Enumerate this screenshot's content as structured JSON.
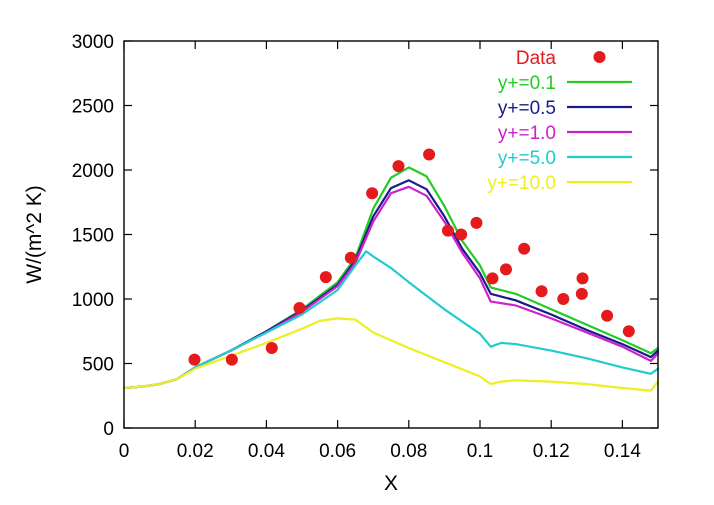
{
  "chart_data": {
    "type": "line",
    "title": "",
    "xlabel": "X",
    "ylabel": "W/(m^2 K)",
    "xlim": [
      0,
      0.15
    ],
    "ylim": [
      0,
      3000
    ],
    "xticks": [
      0,
      0.02,
      0.04,
      0.06,
      0.08,
      0.1,
      0.12,
      0.14
    ],
    "xtick_labels": [
      "0",
      "0.02",
      "0.04",
      "0.06",
      "0.08",
      "0.1",
      "0.12",
      "0.14"
    ],
    "yticks": [
      0,
      500,
      1000,
      1500,
      2000,
      2500,
      3000
    ],
    "ytick_labels": [
      "0",
      "500",
      "1000",
      "1500",
      "2000",
      "2500",
      "3000"
    ],
    "grid": false,
    "legend_position": "top-right",
    "data_points": {
      "name": "Data",
      "color": "#e41a1c",
      "x": [
        0.0198,
        0.0303,
        0.0415,
        0.0493,
        0.0567,
        0.0637,
        0.0697,
        0.0771,
        0.0857,
        0.091,
        0.0947,
        0.099,
        0.1035,
        0.1073,
        0.1124,
        0.1173,
        0.1234,
        0.1286,
        0.1288,
        0.1357,
        0.1418
      ],
      "y": [
        530,
        530,
        620,
        930,
        1170,
        1320,
        1820,
        2030,
        2120,
        1530,
        1500,
        1590,
        1160,
        1230,
        1390,
        1060,
        1000,
        1040,
        1160,
        870,
        750
      ]
    },
    "series": [
      {
        "name": "y+=0.1",
        "color": "#22cc22",
        "x": [
          0,
          0.005,
          0.01,
          0.015,
          0.02,
          0.03,
          0.04,
          0.05,
          0.06,
          0.065,
          0.07,
          0.075,
          0.08,
          0.085,
          0.09,
          0.095,
          0.1,
          0.103,
          0.11,
          0.12,
          0.13,
          0.14,
          0.148,
          0.15
        ],
        "y": [
          310,
          320,
          340,
          380,
          470,
          600,
          750,
          920,
          1130,
          1320,
          1700,
          1940,
          2020,
          1950,
          1720,
          1450,
          1260,
          1090,
          1040,
          920,
          800,
          680,
          580,
          620
        ]
      },
      {
        "name": "y+=0.5",
        "color": "#1a1a8c",
        "x": [
          0,
          0.005,
          0.01,
          0.015,
          0.02,
          0.03,
          0.04,
          0.05,
          0.06,
          0.065,
          0.07,
          0.075,
          0.08,
          0.085,
          0.09,
          0.095,
          0.1,
          0.103,
          0.11,
          0.12,
          0.13,
          0.14,
          0.148,
          0.15
        ],
        "y": [
          310,
          320,
          340,
          380,
          470,
          600,
          750,
          910,
          1110,
          1300,
          1640,
          1860,
          1920,
          1850,
          1640,
          1390,
          1200,
          1040,
          990,
          880,
          760,
          650,
          550,
          600
        ]
      },
      {
        "name": "y+=1.0",
        "color": "#cc22cc",
        "x": [
          0,
          0.005,
          0.01,
          0.015,
          0.02,
          0.03,
          0.04,
          0.05,
          0.06,
          0.065,
          0.07,
          0.075,
          0.08,
          0.085,
          0.09,
          0.095,
          0.1,
          0.103,
          0.11,
          0.12,
          0.13,
          0.14,
          0.148,
          0.15
        ],
        "y": [
          310,
          320,
          340,
          380,
          470,
          600,
          740,
          900,
          1100,
          1280,
          1600,
          1820,
          1870,
          1800,
          1600,
          1360,
          1160,
          980,
          950,
          850,
          740,
          630,
          520,
          580
        ]
      },
      {
        "name": "y+=5.0",
        "color": "#22cccc",
        "x": [
          0,
          0.005,
          0.01,
          0.015,
          0.02,
          0.03,
          0.04,
          0.05,
          0.06,
          0.065,
          0.068,
          0.07,
          0.075,
          0.08,
          0.09,
          0.1,
          0.103,
          0.106,
          0.11,
          0.12,
          0.13,
          0.14,
          0.148,
          0.15
        ],
        "y": [
          310,
          320,
          340,
          380,
          470,
          600,
          740,
          880,
          1070,
          1260,
          1370,
          1330,
          1240,
          1130,
          920,
          730,
          630,
          660,
          650,
          600,
          540,
          470,
          420,
          460
        ]
      },
      {
        "name": "y+=10.0",
        "color": "#eeee22",
        "x": [
          0,
          0.005,
          0.01,
          0.015,
          0.02,
          0.03,
          0.04,
          0.05,
          0.055,
          0.06,
          0.065,
          0.07,
          0.08,
          0.09,
          0.1,
          0.103,
          0.106,
          0.11,
          0.12,
          0.13,
          0.14,
          0.148,
          0.15
        ],
        "y": [
          310,
          320,
          340,
          380,
          460,
          560,
          660,
          770,
          830,
          850,
          840,
          740,
          620,
          510,
          400,
          340,
          360,
          370,
          360,
          340,
          310,
          290,
          360
        ]
      }
    ]
  }
}
